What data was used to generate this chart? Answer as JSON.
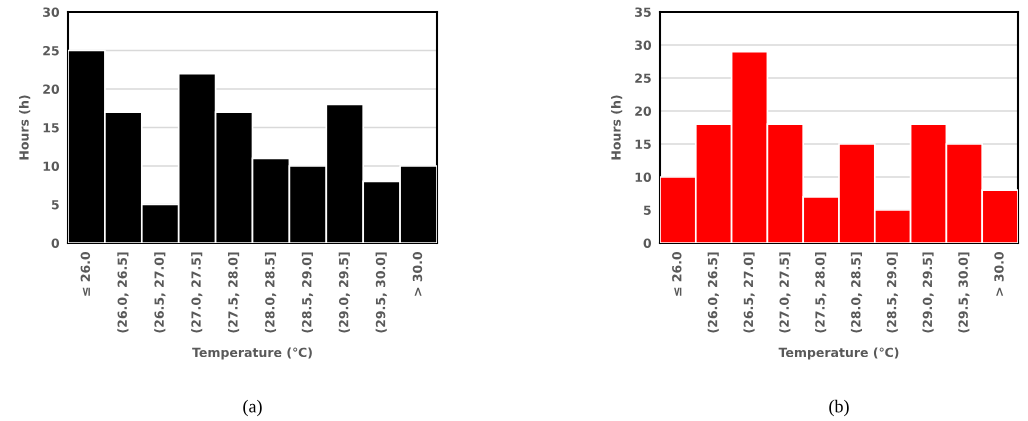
{
  "chart_data": [
    {
      "type": "bar",
      "categories": [
        "≤ 26.0",
        "(26.0, 26.5]",
        "(26.5, 27.0]",
        "(27.0, 27.5]",
        "(27.5, 28.0]",
        "(28.0, 28.5]",
        "(28.5, 29.0]",
        "(29.0, 29.5]",
        "(29.5, 30.0]",
        "> 30.0"
      ],
      "values": [
        25,
        17,
        5,
        22,
        17,
        11,
        10,
        18,
        8,
        10
      ],
      "color": "#000000",
      "xlabel": "Temperature (℃)",
      "ylabel": "Hours (h)",
      "ylim": [
        0,
        30
      ],
      "yticks": [
        0,
        5,
        10,
        15,
        20,
        25,
        30
      ],
      "grid": "y",
      "annotations": [
        "(a)"
      ]
    },
    {
      "type": "bar",
      "categories": [
        "≤ 26.0",
        "(26.0, 26.5]",
        "(26.5, 27.0]",
        "(27.0, 27.5]",
        "(27.5, 28.0]",
        "(28.0, 28.5]",
        "(28.5, 29.0]",
        "(29.0, 29.5]",
        "(29.5, 30.0]",
        "> 30.0"
      ],
      "values": [
        10,
        18,
        29,
        18,
        7,
        15,
        5,
        18,
        15,
        8
      ],
      "color": "#ff0000",
      "xlabel": "Temperature (℃)",
      "ylabel": "Hours (h)",
      "ylim": [
        0,
        35
      ],
      "yticks": [
        0,
        5,
        10,
        15,
        20,
        25,
        30,
        35
      ],
      "grid": "y",
      "annotations": [
        "(b)"
      ]
    }
  ]
}
